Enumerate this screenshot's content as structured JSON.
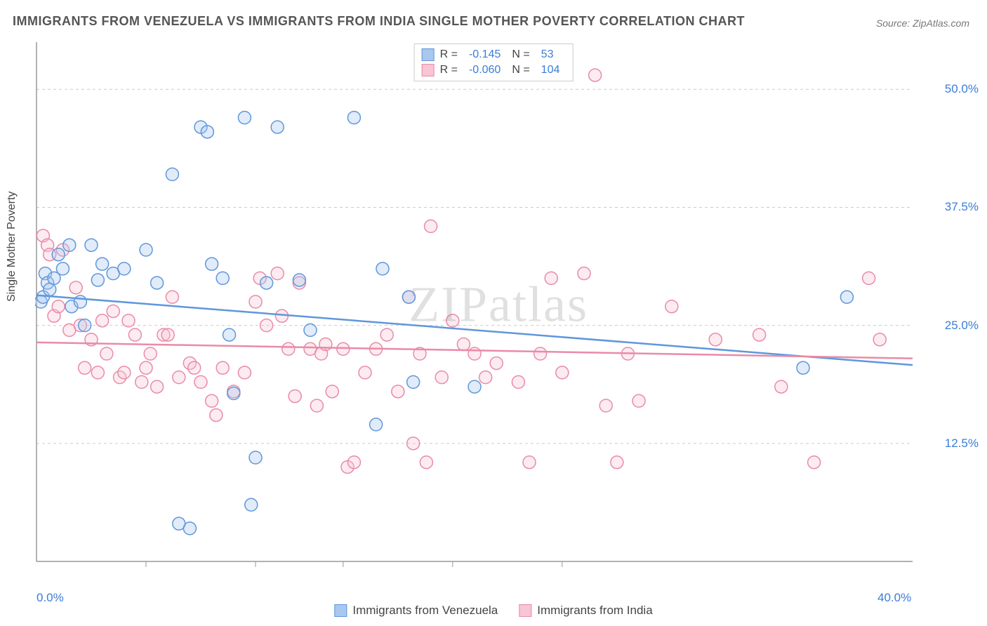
{
  "title": "IMMIGRANTS FROM VENEZUELA VS IMMIGRANTS FROM INDIA SINGLE MOTHER POVERTY CORRELATION CHART",
  "source": "Source: ZipAtlas.com",
  "watermark": "ZIPatlas",
  "y_axis_label": "Single Mother Poverty",
  "chart": {
    "type": "scatter",
    "xlim": [
      0,
      40
    ],
    "ylim": [
      0,
      55
    ],
    "x_ticks": [
      0,
      40
    ],
    "x_tick_labels": [
      "0.0%",
      "40.0%"
    ],
    "y_ticks": [
      12.5,
      25.0,
      37.5,
      50.0
    ],
    "y_tick_labels": [
      "12.5%",
      "25.0%",
      "37.5%",
      "50.0%"
    ],
    "grid_color": "#cccccc",
    "axis_color": "#999999",
    "background_color": "#ffffff",
    "marker_radius": 9,
    "marker_stroke_width": 1.5,
    "marker_fill_opacity": 0.35,
    "trend_line_width": 2.5,
    "x_minor_ticks": [
      5,
      10,
      14,
      19,
      24
    ]
  },
  "series": [
    {
      "name": "Immigrants from Venezuela",
      "color_fill": "#a9c7ef",
      "color_stroke": "#5f97db",
      "R": "-0.145",
      "N": "53",
      "trend": {
        "x1": 0,
        "y1": 28.2,
        "x2": 40,
        "y2": 20.8
      },
      "points": [
        [
          0.2,
          27.5
        ],
        [
          0.3,
          28.0
        ],
        [
          0.4,
          30.5
        ],
        [
          0.5,
          29.5
        ],
        [
          0.6,
          28.8
        ],
        [
          0.8,
          30.0
        ],
        [
          1.0,
          32.5
        ],
        [
          1.2,
          31.0
        ],
        [
          1.5,
          33.5
        ],
        [
          1.6,
          27.0
        ],
        [
          2.0,
          27.5
        ],
        [
          2.2,
          25.0
        ],
        [
          2.5,
          33.5
        ],
        [
          2.8,
          29.8
        ],
        [
          3.0,
          31.5
        ],
        [
          3.5,
          30.5
        ],
        [
          4.0,
          31.0
        ],
        [
          5.0,
          33.0
        ],
        [
          5.5,
          29.5
        ],
        [
          6.2,
          41.0
        ],
        [
          6.5,
          4.0
        ],
        [
          7.0,
          3.5
        ],
        [
          7.5,
          46.0
        ],
        [
          7.8,
          45.5
        ],
        [
          8.0,
          31.5
        ],
        [
          8.5,
          30.0
        ],
        [
          8.8,
          24.0
        ],
        [
          9.0,
          17.8
        ],
        [
          9.5,
          47.0
        ],
        [
          9.8,
          6.0
        ],
        [
          10.0,
          11.0
        ],
        [
          10.5,
          29.5
        ],
        [
          11.0,
          46.0
        ],
        [
          12.0,
          29.8
        ],
        [
          12.5,
          24.5
        ],
        [
          14.5,
          47.0
        ],
        [
          15.5,
          14.5
        ],
        [
          15.8,
          31.0
        ],
        [
          17.0,
          28.0
        ],
        [
          17.2,
          19.0
        ],
        [
          20.0,
          18.5
        ],
        [
          35.0,
          20.5
        ],
        [
          37.0,
          28.0
        ]
      ]
    },
    {
      "name": "Immigrants from India",
      "color_fill": "#f7c5d4",
      "color_stroke": "#e98ba8",
      "R": "-0.060",
      "N": "104",
      "trend": {
        "x1": 0,
        "y1": 23.2,
        "x2": 40,
        "y2": 21.5
      },
      "points": [
        [
          0.3,
          34.5
        ],
        [
          0.5,
          33.5
        ],
        [
          0.6,
          32.5
        ],
        [
          0.8,
          26.0
        ],
        [
          1.0,
          27.0
        ],
        [
          1.2,
          33.0
        ],
        [
          1.5,
          24.5
        ],
        [
          1.8,
          29.0
        ],
        [
          2.0,
          25.0
        ],
        [
          2.2,
          20.5
        ],
        [
          2.5,
          23.5
        ],
        [
          2.8,
          20.0
        ],
        [
          3.0,
          25.5
        ],
        [
          3.2,
          22.0
        ],
        [
          3.5,
          26.5
        ],
        [
          3.8,
          19.5
        ],
        [
          4.0,
          20.0
        ],
        [
          4.2,
          25.5
        ],
        [
          4.5,
          24.0
        ],
        [
          4.8,
          19.0
        ],
        [
          5.0,
          20.5
        ],
        [
          5.2,
          22.0
        ],
        [
          5.5,
          18.5
        ],
        [
          5.8,
          24.0
        ],
        [
          6.0,
          24.0
        ],
        [
          6.2,
          28.0
        ],
        [
          6.5,
          19.5
        ],
        [
          7.0,
          21.0
        ],
        [
          7.2,
          20.5
        ],
        [
          7.5,
          19.0
        ],
        [
          8.0,
          17.0
        ],
        [
          8.2,
          15.5
        ],
        [
          8.5,
          20.5
        ],
        [
          9.0,
          18.0
        ],
        [
          9.5,
          20.0
        ],
        [
          10.0,
          27.5
        ],
        [
          10.2,
          30.0
        ],
        [
          10.5,
          25.0
        ],
        [
          11.0,
          30.5
        ],
        [
          11.2,
          26.0
        ],
        [
          11.5,
          22.5
        ],
        [
          11.8,
          17.5
        ],
        [
          12.0,
          29.5
        ],
        [
          12.5,
          22.5
        ],
        [
          12.8,
          16.5
        ],
        [
          13.0,
          22.0
        ],
        [
          13.2,
          23.0
        ],
        [
          13.5,
          18.0
        ],
        [
          14.0,
          22.5
        ],
        [
          14.2,
          10.0
        ],
        [
          14.5,
          10.5
        ],
        [
          15.0,
          20.0
        ],
        [
          15.5,
          22.5
        ],
        [
          16.0,
          24.0
        ],
        [
          16.5,
          18.0
        ],
        [
          17.0,
          28.0
        ],
        [
          17.2,
          12.5
        ],
        [
          17.5,
          22.0
        ],
        [
          17.8,
          10.5
        ],
        [
          18.0,
          35.5
        ],
        [
          18.5,
          19.5
        ],
        [
          19.0,
          25.5
        ],
        [
          19.5,
          23.0
        ],
        [
          20.0,
          22.0
        ],
        [
          20.5,
          19.5
        ],
        [
          21.0,
          21.0
        ],
        [
          22.0,
          19.0
        ],
        [
          22.5,
          10.5
        ],
        [
          23.0,
          22.0
        ],
        [
          23.5,
          30.0
        ],
        [
          24.0,
          20.0
        ],
        [
          25.0,
          30.5
        ],
        [
          25.5,
          51.5
        ],
        [
          26.0,
          16.5
        ],
        [
          26.5,
          10.5
        ],
        [
          27.0,
          22.0
        ],
        [
          27.5,
          17.0
        ],
        [
          29.0,
          27.0
        ],
        [
          31.0,
          23.5
        ],
        [
          33.0,
          24.0
        ],
        [
          34.0,
          18.5
        ],
        [
          35.5,
          10.5
        ],
        [
          38.0,
          30.0
        ],
        [
          38.5,
          23.5
        ]
      ]
    }
  ],
  "legend_bottom": [
    {
      "label": "Immigrants from Venezuela",
      "swatch_fill": "#a9c7ef",
      "swatch_stroke": "#5f97db"
    },
    {
      "label": "Immigrants from India",
      "swatch_fill": "#f7c5d4",
      "swatch_stroke": "#e98ba8"
    }
  ]
}
